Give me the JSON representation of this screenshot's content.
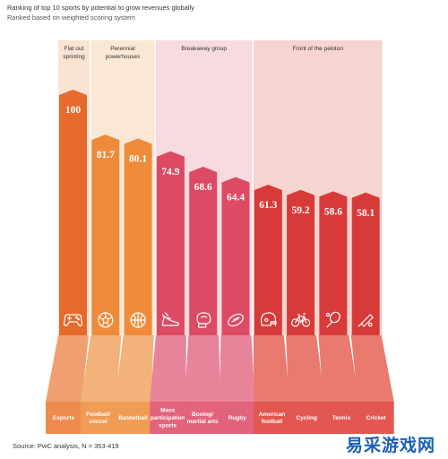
{
  "header": {
    "title": "Ranking of top 10 sports by potential to grow revenues globally",
    "subtitle": "Ranked based on weighted scoring system"
  },
  "source": "Source: PwC analysis, N = 353-419",
  "watermark": "易采游戏网",
  "groups": [
    {
      "label": "Flat out\nsprinting",
      "bg": "#f9e3d2"
    },
    {
      "label": "Perennial\npowerhouses",
      "bg": "#fbe8d4"
    },
    {
      "label": "Breakaway group",
      "bg": "#f8dbe0"
    },
    {
      "label": "Front of the peloton",
      "bg": "#f6d4cf"
    }
  ],
  "chart_data": {
    "type": "bar",
    "title": "Ranking of top 10 sports by potential to grow revenues globally",
    "subtitle": "Ranked based on weighted scoring system",
    "categories": [
      "Esports",
      "Football/\nsoccer",
      "Basketball",
      "Mass\nparticipation\nsports",
      "Boxing/\nmartial arts",
      "Rugby",
      "American\nfootball",
      "Cycling",
      "Tennis",
      "Cricket"
    ],
    "values": [
      100,
      81.7,
      80.1,
      74.9,
      68.6,
      64.4,
      61.3,
      59.2,
      58.6,
      58.1
    ],
    "value_labels": [
      "100",
      "81.7",
      "80.1",
      "74.9",
      "68.6",
      "64.4",
      "61.3",
      "59.2",
      "58.6",
      "58.1"
    ],
    "group_index": [
      0,
      1,
      1,
      2,
      2,
      2,
      3,
      3,
      3,
      3
    ],
    "icons": [
      "gamepad-icon",
      "soccer-ball-icon",
      "basketball-icon",
      "running-shoe-icon",
      "boxing-glove-icon",
      "rugby-ball-icon",
      "football-helmet-icon",
      "bicycle-icon",
      "tennis-racket-icon",
      "cricket-bat-icon"
    ],
    "ylim": [
      0,
      100
    ],
    "colors": {
      "bars": [
        "#e56a2b",
        "#ee8b3a",
        "#ee8b3a",
        "#dc4a63",
        "#dc4a63",
        "#dc4a63",
        "#d83a3a",
        "#d83a3a",
        "#d83a3a",
        "#d83a3a"
      ],
      "floor": [
        "#f0a070",
        "#f2b27a",
        "#f2b27a",
        "#e8849a",
        "#e8849a",
        "#e8849a",
        "#e87a70",
        "#e87a70",
        "#e87a70",
        "#e87a70"
      ],
      "front": [
        "#ee8a4c",
        "#f09c55",
        "#f09c55",
        "#e2637c",
        "#e2637c",
        "#e2637c",
        "#e2574f",
        "#e2574f",
        "#e2574f",
        "#e2574f"
      ]
    }
  }
}
